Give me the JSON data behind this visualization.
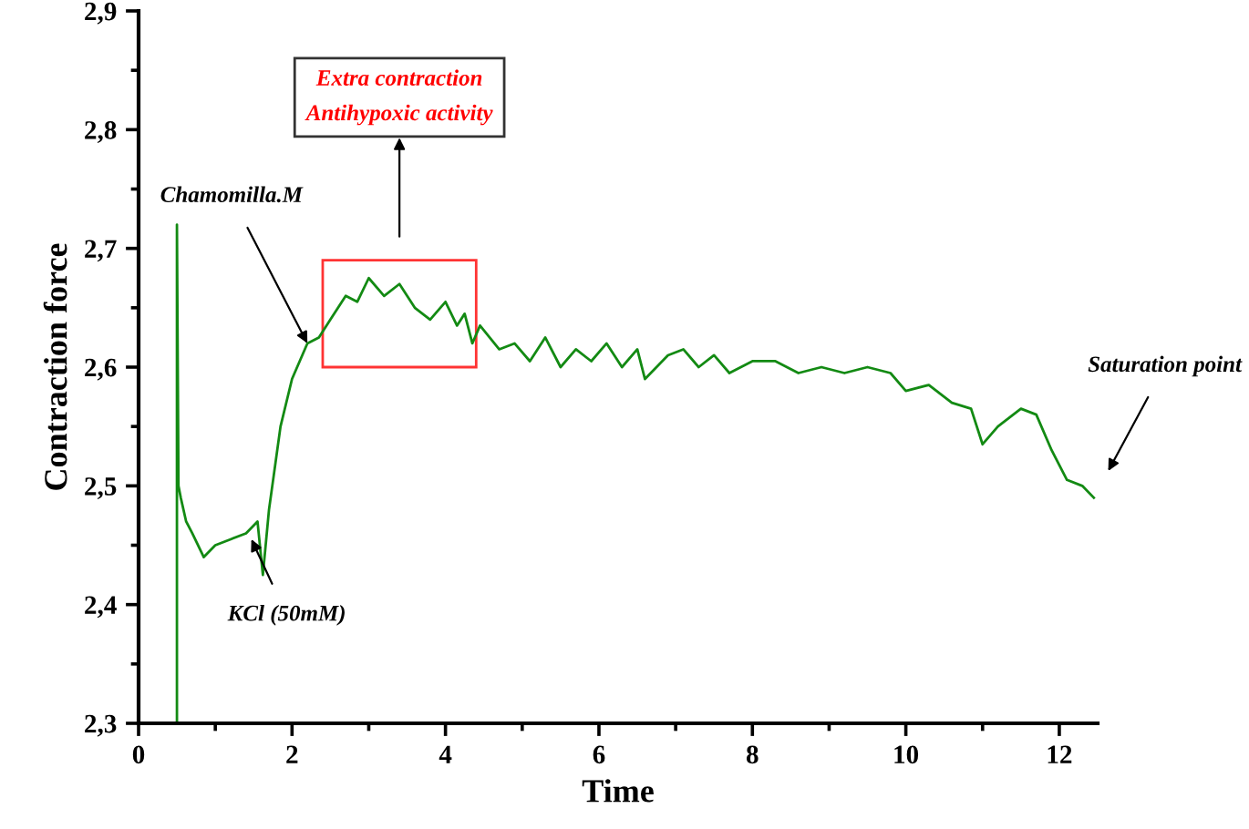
{
  "chart_data": {
    "type": "line",
    "xlabel": "Time",
    "ylabel": "Contraction force",
    "xlim": [
      0,
      12.5
    ],
    "ylim": [
      2.3,
      2.9
    ],
    "xticks": [
      0,
      {
        "value": 1,
        "label": null
      },
      2,
      {
        "value": 3,
        "label": null
      },
      4,
      {
        "value": 5,
        "label": null
      },
      6,
      {
        "value": 7,
        "label": null
      },
      8,
      {
        "value": 9,
        "label": null
      },
      10,
      {
        "value": 11,
        "label": null
      },
      12
    ],
    "yticks": [
      {
        "value": 2.3,
        "label": "2,3"
      },
      {
        "value": 2.35,
        "label": null
      },
      {
        "value": 2.4,
        "label": "2,4"
      },
      {
        "value": 2.45,
        "label": null
      },
      {
        "value": 2.5,
        "label": "2,5"
      },
      {
        "value": 2.55,
        "label": null
      },
      {
        "value": 2.6,
        "label": "2,6"
      },
      {
        "value": 2.65,
        "label": null
      },
      {
        "value": 2.7,
        "label": "2,7"
      },
      {
        "value": 2.75,
        "label": null
      },
      {
        "value": 2.8,
        "label": "2,8"
      },
      {
        "value": 2.85,
        "label": null
      },
      {
        "value": 2.9,
        "label": "2,9"
      }
    ],
    "grid": false,
    "legend": false,
    "marker": "none",
    "line_style": "solid",
    "series": [
      {
        "color": "#138a13",
        "x": [
          0.5,
          0.5,
          0.52,
          0.55,
          0.62,
          0.7,
          0.85,
          1.0,
          1.2,
          1.4,
          1.55,
          1.62,
          1.7,
          1.85,
          2.0,
          2.2,
          2.35,
          2.5,
          2.7,
          2.85,
          3.0,
          3.2,
          3.4,
          3.6,
          3.8,
          4.0,
          4.15,
          4.25,
          4.35,
          4.45,
          4.7,
          4.9,
          5.1,
          5.3,
          5.5,
          5.7,
          5.9,
          6.1,
          6.3,
          6.5,
          6.6,
          6.9,
          7.1,
          7.3,
          7.5,
          7.7,
          8.0,
          8.3,
          8.6,
          8.9,
          9.2,
          9.5,
          9.8,
          10.0,
          10.3,
          10.6,
          10.85,
          11.0,
          11.2,
          11.5,
          11.7,
          11.9,
          12.1,
          12.3,
          12.45
        ],
        "values": [
          2.3,
          2.72,
          2.5,
          2.49,
          2.47,
          2.46,
          2.44,
          2.45,
          2.455,
          2.46,
          2.47,
          2.425,
          2.48,
          2.55,
          2.59,
          2.62,
          2.625,
          2.64,
          2.66,
          2.655,
          2.675,
          2.66,
          2.67,
          2.65,
          2.64,
          2.655,
          2.635,
          2.645,
          2.62,
          2.635,
          2.615,
          2.62,
          2.605,
          2.625,
          2.6,
          2.615,
          2.605,
          2.62,
          2.6,
          2.615,
          2.59,
          2.61,
          2.615,
          2.6,
          2.61,
          2.595,
          2.605,
          2.605,
          2.595,
          2.6,
          2.595,
          2.6,
          2.595,
          2.58,
          2.585,
          2.57,
          2.565,
          2.535,
          2.55,
          2.565,
          2.56,
          2.53,
          2.505,
          2.5,
          2.49
        ]
      }
    ],
    "annotations": [
      {
        "text": "Chamomilla.M",
        "x": 2.2,
        "y": 2.62
      },
      "Extra contraction\nAntihypoxic activity",
      {
        "text": "KCl (50mM)",
        "x": 1.47,
        "y": 2.455
      },
      "Saturation point"
    ]
  }
}
